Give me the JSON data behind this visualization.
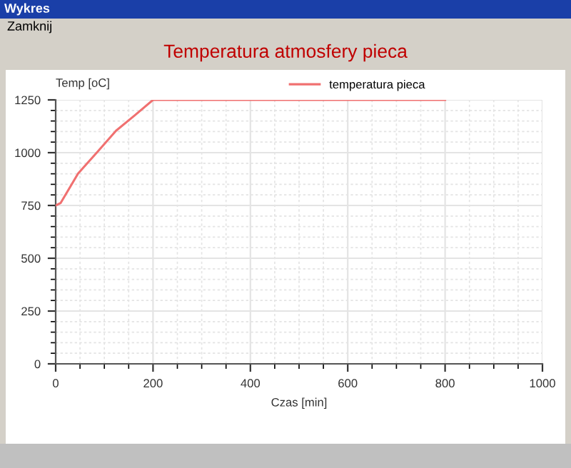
{
  "chart_data": {
    "type": "line",
    "title": "Temperatura atmosfery pieca",
    "xlabel": "Czas [min]",
    "ylabel": "Temp [oC]",
    "annotations": [
      "Wykres",
      "Zamknij"
    ],
    "series": [
      {
        "name": "temperatura pieca",
        "color": "#f07070",
        "x": [
          0,
          10,
          46,
          85,
          124,
          163,
          200,
          800
        ],
        "values": [
          750,
          761,
          901,
          1002,
          1104,
          1178,
          1250,
          1250
        ]
      }
    ],
    "xlim": [
      0,
      1000
    ],
    "xticks": [
      0,
      200,
      400,
      600,
      800,
      1000
    ],
    "ylim": [
      0,
      1250
    ],
    "yticks": [
      0,
      250,
      500,
      750,
      1000,
      1250
    ],
    "grid": true,
    "legend": "top",
    "marker": "none",
    "line_style": "solid"
  }
}
